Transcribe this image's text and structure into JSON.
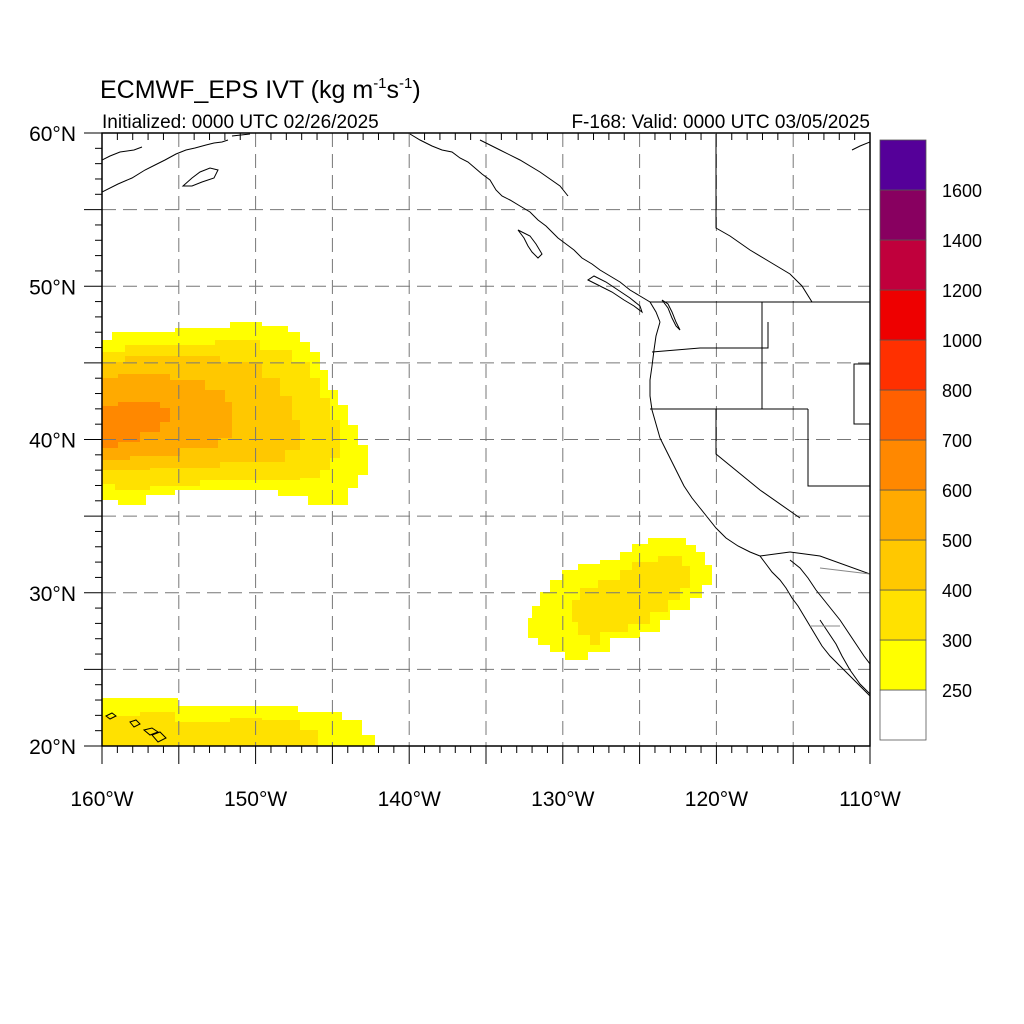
{
  "title": {
    "prefix": "ECMWF_EPS IVT (kg m",
    "exp1": "-1",
    "mid": "s",
    "exp2": "-1",
    "suffix": ")"
  },
  "initialized": "Initialized: 0000 UTC 02/26/2025",
  "valid": "F-168: Valid: 0000 UTC 03/05/2025",
  "map": {
    "lon_range": [
      -160,
      -110
    ],
    "lat_range": [
      20,
      60
    ],
    "lon_ticks": [
      {
        "value": -160,
        "label": "160°W"
      },
      {
        "value": -150,
        "label": "150°W"
      },
      {
        "value": -140,
        "label": "140°W"
      },
      {
        "value": -130,
        "label": "130°W"
      },
      {
        "value": -120,
        "label": "120°W"
      },
      {
        "value": -110,
        "label": "110°W"
      }
    ],
    "lat_ticks": [
      {
        "value": 60,
        "label": "60°N"
      },
      {
        "value": 50,
        "label": "50°N"
      },
      {
        "value": 40,
        "label": "40°N"
      },
      {
        "value": 30,
        "label": "30°N"
      },
      {
        "value": 20,
        "label": "20°N"
      }
    ],
    "gridlines": "dashed, every 5°"
  },
  "colorbar": {
    "levels": [
      "250",
      "300",
      "400",
      "500",
      "600",
      "700",
      "800",
      "1000",
      "1200",
      "1400",
      "1600"
    ],
    "colors": [
      "#ffffff",
      "#ffff00",
      "#ffe100",
      "#ffc800",
      "#ffaa00",
      "#ff8800",
      "#ff6000",
      "#ff3000",
      "#ee0000",
      "#c0003c",
      "#880060",
      "#550099"
    ]
  },
  "ivt_regions": [
    {
      "name": "west-pacific-plume",
      "center_lat": 41.5,
      "center_lon": -157.5,
      "max_category": "600-700"
    },
    {
      "name": "subtropical-east-pacific-blob",
      "center_lat": 30,
      "center_lon": -126,
      "max_category": "300-400"
    },
    {
      "name": "hawaii-band",
      "center_lat": 21.5,
      "center_lon": -152,
      "max_category": "300-400"
    }
  ]
}
